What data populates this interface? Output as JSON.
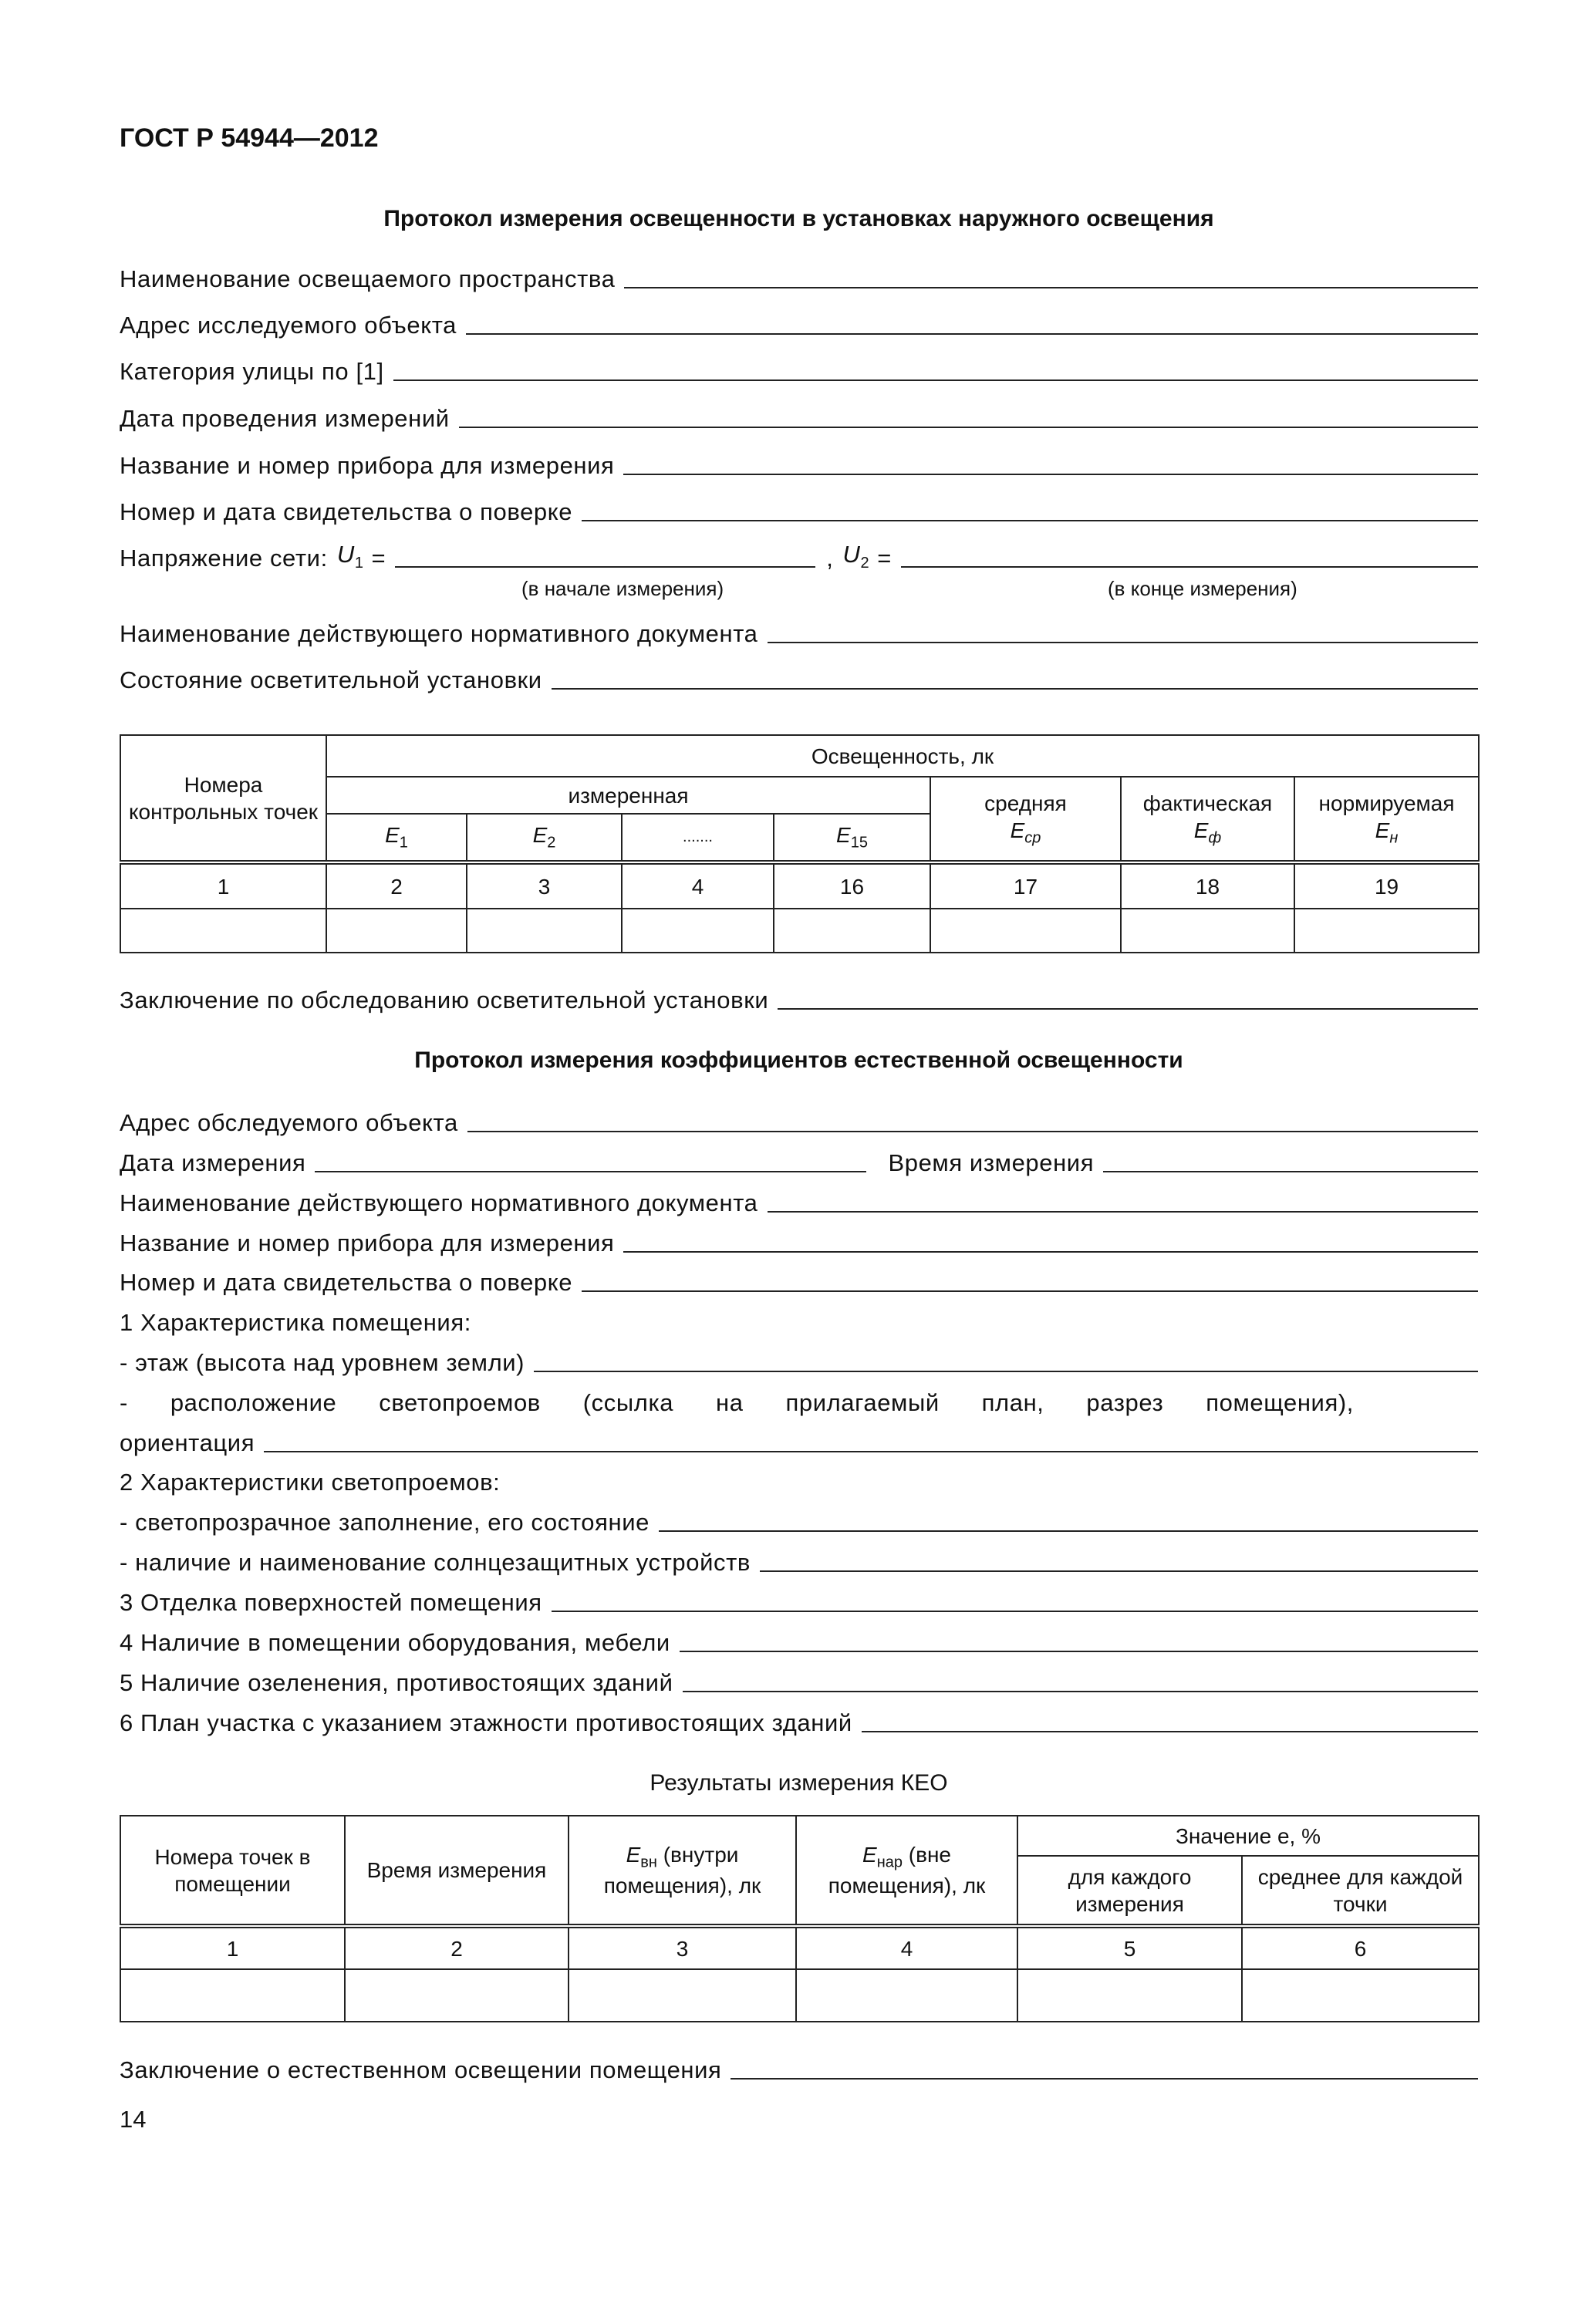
{
  "header": {
    "standard": "ГОСТ Р 54944—2012"
  },
  "protocol1": {
    "title": "Протокол измерения освещенности в установках наружного освещения",
    "fields": [
      "Наименование освещаемого пространства",
      "Адрес исследуемого объекта",
      "Категория улицы по [1]",
      "Дата проведения измерений",
      "Название и номер прибора для измерения",
      "Номер и дата свидетельства о поверке"
    ],
    "voltage": {
      "label": "Напряжение сети:",
      "u1": "U",
      "u1_sub": "1",
      "eq": "=",
      "sep": ",",
      "u2": "U",
      "u2_sub": "2",
      "caption_start": "(в начале измерения)",
      "caption_end": "(в конце измерения)"
    },
    "fields2": [
      "Наименование действующего нормативного документа",
      "Состояние осветительной установки"
    ],
    "table": {
      "col1": "Номера контрольных точек",
      "group": "Освещенность, лк",
      "measured": "измеренная",
      "e": [
        "E",
        "E",
        "",
        "E"
      ],
      "e_sub": [
        "1",
        "2",
        "",
        "15"
      ],
      "ellipsis": ".......",
      "avg": "средняя",
      "avg_sym": "E",
      "avg_sub": "ср",
      "actual": "фактическая",
      "actual_sym": "E",
      "actual_sub": "ф",
      "norm": "нормируемая",
      "norm_sym": "E",
      "norm_sub": "н",
      "numbers": [
        "1",
        "2",
        "3",
        "4",
        "16",
        "17",
        "18",
        "19"
      ]
    },
    "conclusion": "Заключение по обследованию осветительной установки"
  },
  "protocol2": {
    "title": "Протокол измерения коэффициентов естественной освещенности",
    "address": "Адрес обследуемого объекта",
    "date": "Дата измерения",
    "time": "Время измерения",
    "fields": [
      "Наименование действующего нормативного документа",
      "Название и номер прибора для измерения",
      "Номер и дата свидетельства о поверке"
    ],
    "s1": "1 Характеристика помещения:",
    "s1a": "- этаж (высота над уровнем земли)",
    "s1b": "- расположение светопроемов (ссылка на прилагаемый план, разрез помещения),",
    "s1c": "ориентация",
    "s2": "2 Характеристики светопроемов:",
    "s2a": "- светопрозрачное заполнение, его состояние",
    "s2b": "- наличие и наименование солнцезащитных устройств",
    "s3": "3 Отделка поверхностей помещения",
    "s4": "4 Наличие в помещении оборудования, мебели",
    "s5": "5 Наличие озеленения, противостоящих зданий",
    "s6": "6 План участка с указанием этажности противостоящих зданий",
    "results_title": "Результаты измерения КЕО",
    "table": {
      "c1": "Номера точек в помещении",
      "c2": "Время измерения",
      "c3_sym": "E",
      "c3_sub": "вн",
      "c3": " (внутри помещения), лк",
      "c4_sym": "E",
      "c4_sub": "нар",
      "c4": " (вне помещения), лк",
      "group": "Значение e, %",
      "c5": "для каждого измерения",
      "c6": "среднее для каждой точки",
      "numbers": [
        "1",
        "2",
        "3",
        "4",
        "5",
        "6"
      ]
    },
    "conclusion": "Заключение о естественном освещении помещения"
  },
  "page_number": "14"
}
